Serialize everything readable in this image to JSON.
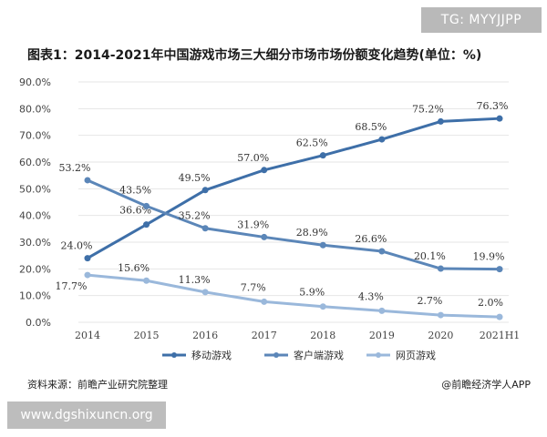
{
  "watermark_badge": "TG: MYYJJPP",
  "footer": {
    "source": "资料来源：前瞻产业研究院整理",
    "credit": "@前瞻经济学人APP",
    "site": "www.dgshixuncn.org"
  },
  "colors": {
    "mobile": "#3e6fa8",
    "client": "#5b86b8",
    "web": "#9ab8db",
    "grid": "#e6e6e6",
    "axis_text": "#444444"
  },
  "chart_data": {
    "type": "line",
    "title": "图表1：2014-2021年中国游戏市场三大细分市场市场份额变化趋势(单位：%)",
    "categories": [
      "2014",
      "2015",
      "2016",
      "2017",
      "2018",
      "2019",
      "2020",
      "2021H1"
    ],
    "ylim": [
      0,
      90
    ],
    "yticks": [
      "0.0%",
      "10.0%",
      "20.0%",
      "30.0%",
      "40.0%",
      "50.0%",
      "60.0%",
      "70.0%",
      "80.0%",
      "90.0%"
    ],
    "grid": true,
    "legend_position": "bottom",
    "series": [
      {
        "name": "移动游戏",
        "values": [
          24.0,
          36.6,
          49.5,
          57.0,
          62.5,
          68.5,
          75.2,
          76.3
        ],
        "labels": [
          "24.0%",
          "36.6%",
          "49.5%",
          "57.0%",
          "62.5%",
          "68.5%",
          "75.2%",
          "76.3%"
        ]
      },
      {
        "name": "客户端游戏",
        "values": [
          53.2,
          43.5,
          35.2,
          31.9,
          28.9,
          26.6,
          20.1,
          19.9
        ],
        "labels": [
          "53.2%",
          "43.5%",
          "35.2%",
          "31.9%",
          "28.9%",
          "26.6%",
          "20.1%",
          "19.9%"
        ]
      },
      {
        "name": "网页游戏",
        "values": [
          17.7,
          15.6,
          11.3,
          7.7,
          5.9,
          4.3,
          2.7,
          2.0
        ],
        "labels": [
          "17.7%",
          "15.6%",
          "11.3%",
          "7.7%",
          "5.9%",
          "4.3%",
          "2.7%",
          "2.0%"
        ]
      }
    ]
  }
}
